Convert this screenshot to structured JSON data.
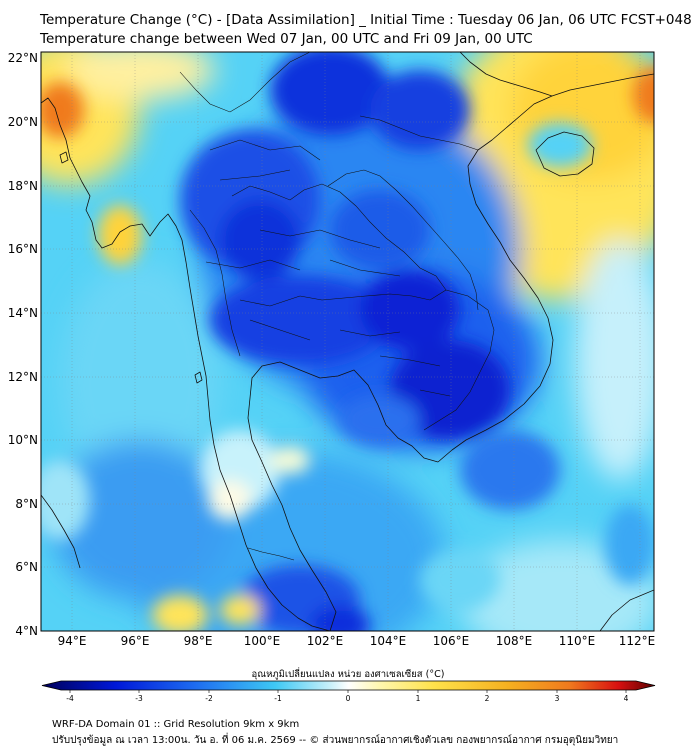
{
  "header": {
    "title_line1": "Temperature Change (°C) - [Data Assimilation] _ Initial Time : Tuesday 06 Jan, 06 UTC FCST+048",
    "title_line2": "Temperature change between Wed 07 Jan, 00 UTC and Fri 09 Jan, 00 UTC"
  },
  "map": {
    "lat_labels": [
      "22°N",
      "20°N",
      "18°N",
      "16°N",
      "14°N",
      "12°N",
      "10°N",
      "8°N",
      "6°N",
      "4°N"
    ],
    "lon_labels": [
      "94°E",
      "96°E",
      "98°E",
      "100°E",
      "102°E",
      "104°E",
      "106°E",
      "108°E",
      "110°E",
      "112°E"
    ],
    "lat_range": [
      4,
      22
    ],
    "lon_range": [
      93,
      112.5
    ]
  },
  "colorbar": {
    "label": "อุณหภูมิเปลี่ยนแปลง หน่วย องศาเซลเซียส (°C)",
    "ticks": [
      "-4",
      "-3",
      "-2",
      "-1",
      "0",
      "1",
      "2",
      "3",
      "4"
    ],
    "range": [
      -4,
      4
    ],
    "colors": {
      "cold_extreme": "#00005a",
      "cold_strong": "#0018d8",
      "cold": "#1e6cf0",
      "cool": "#3ec8f4",
      "neutral": "#ffffff",
      "warm": "#ffe24a",
      "warm_strong": "#f07a1e",
      "hot": "#d81010",
      "hot_extreme": "#5a0000"
    }
  },
  "footer": {
    "line1": "WRF-DA Domain 01 :: Grid Resolution 9km x 9km",
    "line2": "ปรับปรุงข้อมูล ณ เวลา 13:00น. วัน อ. ที่ 06 ม.ค. 2569 -- © ส่วนพยากรณ์อากาศเชิงตัวเลข กองพยากรณ์อากาศ กรมอุตุนิยมวิทยา"
  }
}
